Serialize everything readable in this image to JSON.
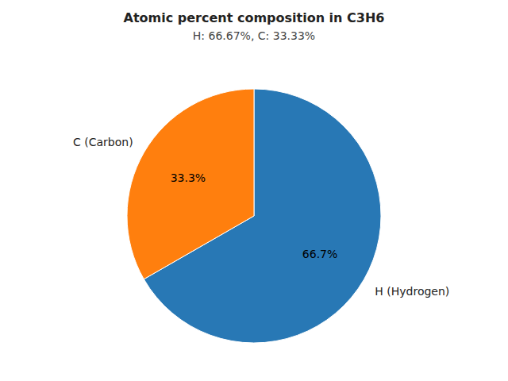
{
  "chart_data": {
    "type": "pie",
    "title": "Atomic percent composition in C3H6",
    "subtitle": "H: 66.67%, C: 33.33%",
    "categories": [
      "H (Hydrogen)",
      "C (Carbon)"
    ],
    "values": [
      66.7,
      33.3
    ],
    "value_labels": [
      "66.7%",
      "33.3%"
    ],
    "colors": [
      "#2878b5",
      "#ff7f0e"
    ],
    "data_labels": true
  }
}
